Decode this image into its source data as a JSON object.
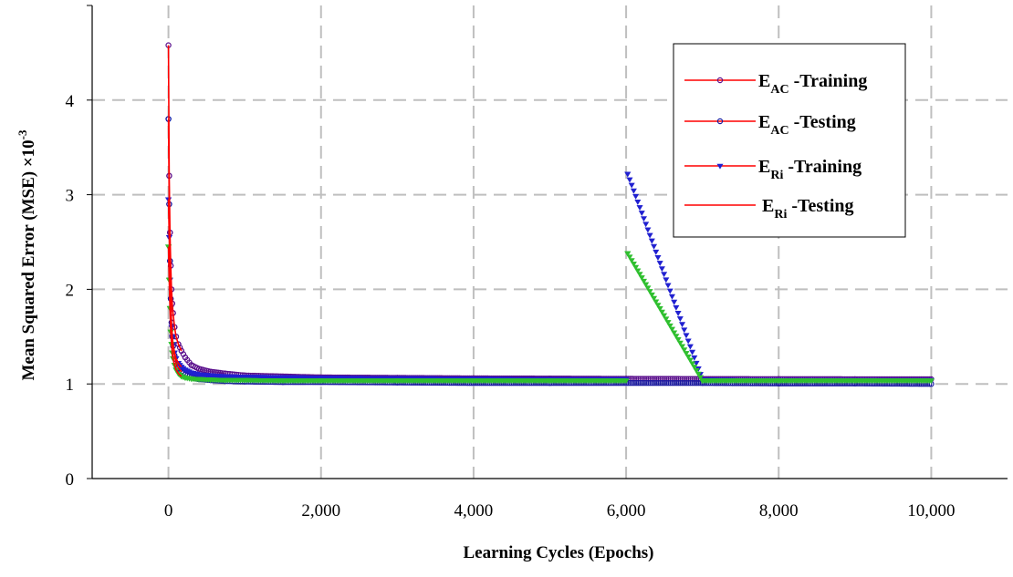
{
  "chart_data": {
    "type": "line",
    "title": "",
    "xlabel": "Learning Cycles (Epochs)",
    "ylabel": {
      "main": "Mean Squared Error (MSE) ×10",
      "superscript": "-3"
    },
    "xlim": [
      -1000,
      11000
    ],
    "ylim": [
      0,
      5
    ],
    "x_ticks": [
      0,
      2000,
      4000,
      6000,
      8000,
      10000
    ],
    "x_tick_labels": [
      "0",
      "2,000",
      "4,000",
      "6,000",
      "8,000",
      "10,000"
    ],
    "y_ticks": [
      0,
      1,
      2,
      3,
      4
    ],
    "y_tick_labels": [
      "0",
      "1",
      "2",
      "3",
      "4"
    ],
    "grid": true,
    "legend_position": "top-right",
    "series": [
      {
        "key": "eac_training",
        "name_main": "E",
        "name_sub": "AC",
        "name_rest": " -Training",
        "line_color": "#ff0000",
        "marker_color": "#5a0f8c",
        "marker": "circle",
        "x": [
          0,
          10,
          20,
          30,
          40,
          50,
          60,
          80,
          100,
          130,
          170,
          220,
          300,
          400,
          550,
          750,
          1000,
          1500,
          2000,
          3000,
          4000,
          5000,
          6000,
          7000,
          8000,
          9000,
          10000
        ],
        "y": [
          4.58,
          3.2,
          2.6,
          2.25,
          2.0,
          1.85,
          1.75,
          1.6,
          1.5,
          1.42,
          1.35,
          1.28,
          1.2,
          1.16,
          1.13,
          1.11,
          1.09,
          1.08,
          1.07,
          1.065,
          1.06,
          1.058,
          1.055,
          1.053,
          1.052,
          1.051,
          1.05
        ]
      },
      {
        "key": "eac_testing",
        "name_main": "E",
        "name_sub": "AC",
        "name_rest": " -Testing",
        "line_color": "#ff0000",
        "marker_color": "#1a1aa0",
        "marker": "circle",
        "x": [
          0,
          10,
          20,
          30,
          40,
          50,
          60,
          80,
          100,
          130,
          170,
          220,
          300,
          400,
          550,
          750,
          1000,
          1500,
          2000,
          3000,
          4000,
          5000,
          6000,
          7000,
          8000,
          9000,
          10000
        ],
        "y": [
          3.8,
          2.9,
          2.3,
          1.9,
          1.65,
          1.5,
          1.4,
          1.3,
          1.22,
          1.17,
          1.13,
          1.1,
          1.07,
          1.05,
          1.04,
          1.03,
          1.025,
          1.02,
          1.02,
          1.015,
          1.01,
          1.01,
          1.01,
          1.01,
          1.005,
          1.005,
          1.0
        ]
      },
      {
        "key": "eri_training",
        "name_main": "E",
        "name_sub": "Ri",
        "name_rest": " -Training",
        "line_color": "#ff0000",
        "marker_color": "#2020d0",
        "marker": "triangle",
        "x": [
          0,
          10,
          20,
          30,
          40,
          50,
          60,
          80,
          100,
          130,
          170,
          220,
          300,
          400,
          550,
          750,
          1000,
          1500,
          2000,
          3000,
          4000,
          5000,
          6000,
          6020,
          7000,
          8000,
          9000,
          10000
        ],
        "y": [
          2.95,
          2.55,
          2.1,
          1.8,
          1.6,
          1.5,
          1.42,
          1.33,
          1.27,
          1.22,
          1.18,
          1.15,
          1.12,
          1.1,
          1.09,
          1.08,
          1.075,
          1.07,
          1.065,
          1.06,
          1.055,
          1.05,
          1.05,
          3.22,
          1.045,
          1.04,
          1.04,
          1.04
        ]
      },
      {
        "key": "eri_testing",
        "name_main": "E",
        "name_sub": "Ri",
        "name_rest": " -Testing",
        "line_color": "#ff0000",
        "marker_color": "#2fbf2f",
        "marker": "triangle",
        "x": [
          0,
          10,
          20,
          30,
          40,
          50,
          60,
          80,
          100,
          130,
          170,
          220,
          300,
          400,
          550,
          750,
          1000,
          1500,
          2000,
          3000,
          4000,
          5000,
          6000,
          6020,
          7000,
          8000,
          9000,
          10000
        ],
        "y": [
          2.45,
          2.1,
          1.8,
          1.55,
          1.42,
          1.33,
          1.27,
          1.2,
          1.15,
          1.11,
          1.08,
          1.065,
          1.055,
          1.05,
          1.045,
          1.04,
          1.04,
          1.035,
          1.035,
          1.035,
          1.035,
          1.035,
          1.035,
          2.38,
          1.035,
          1.035,
          1.035,
          1.035
        ]
      }
    ]
  }
}
